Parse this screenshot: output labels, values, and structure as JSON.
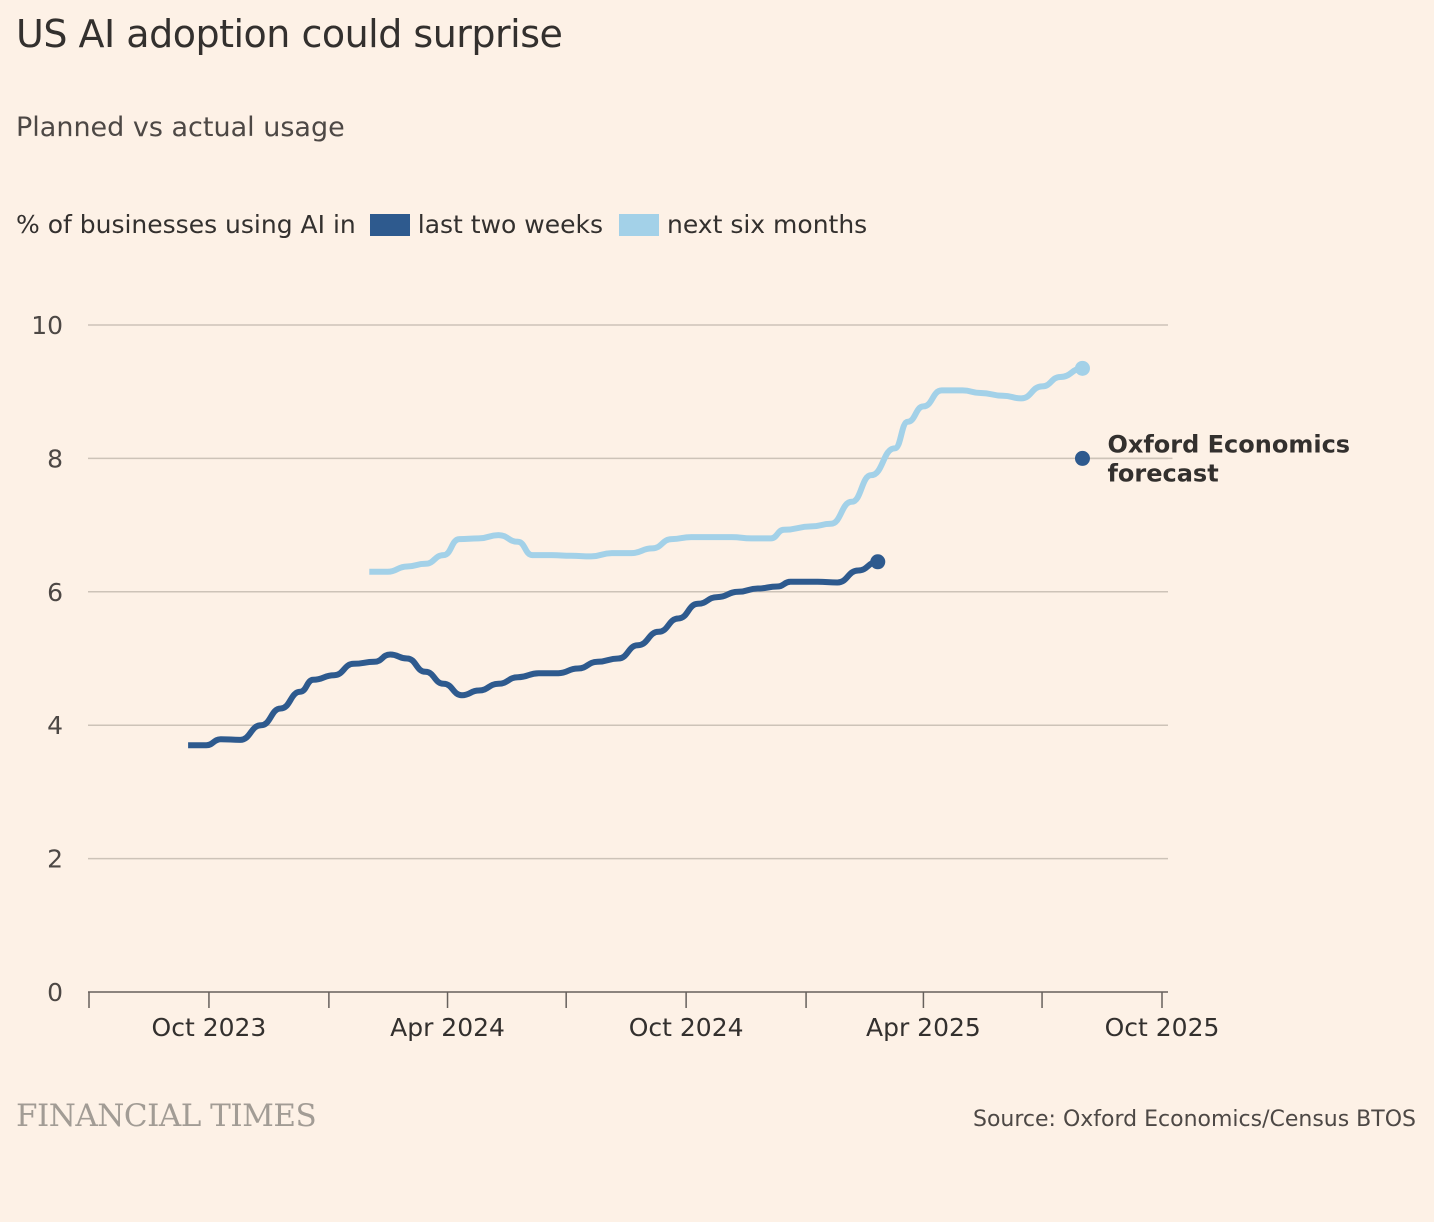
{
  "header": {
    "title": "US AI adoption could surprise",
    "subtitle": "Planned vs actual usage"
  },
  "footer": {
    "brand": "FINANCIAL TIMES",
    "source": "Source: Oxford Economics/Census BTOS"
  },
  "colors": {
    "background": "#fdf1e6",
    "last_two_weeks": "#2e5a8e",
    "next_six_months": "#a3d1e8",
    "gridline": "#cdc3b8",
    "axis": "#66605c",
    "text": "#33302e"
  },
  "chart_data": {
    "type": "line",
    "title": "US AI adoption could surprise",
    "subtitle": "Planned vs actual usage",
    "ylabel": "% of businesses using AI in",
    "ylim": [
      0,
      10
    ],
    "yticks": [
      0,
      2,
      4,
      6,
      8,
      10
    ],
    "xlim": [
      "2023-07-01",
      "2025-10-01"
    ],
    "xticks": [
      {
        "date": "2023-10-01",
        "label": "Oct 2023"
      },
      {
        "date": "2024-04-01",
        "label": "Apr 2024"
      },
      {
        "date": "2024-10-01",
        "label": "Oct 2024"
      },
      {
        "date": "2025-04-01",
        "label": "Apr 2025"
      },
      {
        "date": "2025-10-01",
        "label": "Oct 2025"
      }
    ],
    "minor_xticks": [
      "2023-07-01",
      "2024-01-01",
      "2024-07-01",
      "2025-01-01",
      "2025-07-01"
    ],
    "grid": true,
    "legend_position": "top-left",
    "series": [
      {
        "name": "last two weeks",
        "end_marker": true,
        "points": [
          [
            "2023-09-15",
            3.7
          ],
          [
            "2023-09-29",
            3.7
          ],
          [
            "2023-10-10",
            3.79
          ],
          [
            "2023-10-25",
            3.78
          ],
          [
            "2023-11-10",
            4.0
          ],
          [
            "2023-11-25",
            4.25
          ],
          [
            "2023-12-10",
            4.5
          ],
          [
            "2023-12-20",
            4.68
          ],
          [
            "2024-01-05",
            4.75
          ],
          [
            "2024-01-20",
            4.92
          ],
          [
            "2024-02-05",
            4.95
          ],
          [
            "2024-02-17",
            5.06
          ],
          [
            "2024-03-01",
            5.0
          ],
          [
            "2024-03-15",
            4.8
          ],
          [
            "2024-03-29",
            4.62
          ],
          [
            "2024-04-12",
            4.45
          ],
          [
            "2024-04-25",
            4.52
          ],
          [
            "2024-05-10",
            4.62
          ],
          [
            "2024-05-25",
            4.72
          ],
          [
            "2024-06-10",
            4.78
          ],
          [
            "2024-06-25",
            4.78
          ],
          [
            "2024-07-10",
            4.85
          ],
          [
            "2024-07-25",
            4.95
          ],
          [
            "2024-08-10",
            5.0
          ],
          [
            "2024-08-25",
            5.2
          ],
          [
            "2024-09-10",
            5.4
          ],
          [
            "2024-09-25",
            5.6
          ],
          [
            "2024-10-10",
            5.82
          ],
          [
            "2024-10-25",
            5.92
          ],
          [
            "2024-11-10",
            6.0
          ],
          [
            "2024-11-25",
            6.05
          ],
          [
            "2024-12-10",
            6.08
          ],
          [
            "2024-12-20",
            6.15
          ],
          [
            "2025-01-10",
            6.15
          ],
          [
            "2025-01-25",
            6.14
          ],
          [
            "2025-02-10",
            6.32
          ],
          [
            "2025-02-25",
            6.45
          ]
        ]
      },
      {
        "name": "next six months",
        "end_marker": true,
        "points": [
          [
            "2024-02-01",
            6.3
          ],
          [
            "2024-02-15",
            6.3
          ],
          [
            "2024-03-01",
            6.38
          ],
          [
            "2024-03-15",
            6.42
          ],
          [
            "2024-03-29",
            6.55
          ],
          [
            "2024-04-10",
            6.79
          ],
          [
            "2024-04-25",
            6.8
          ],
          [
            "2024-05-10",
            6.85
          ],
          [
            "2024-05-25",
            6.75
          ],
          [
            "2024-06-05",
            6.55
          ],
          [
            "2024-06-20",
            6.55
          ],
          [
            "2024-07-05",
            6.54
          ],
          [
            "2024-07-20",
            6.53
          ],
          [
            "2024-08-05",
            6.58
          ],
          [
            "2024-08-20",
            6.58
          ],
          [
            "2024-09-05",
            6.65
          ],
          [
            "2024-09-20",
            6.79
          ],
          [
            "2024-10-05",
            6.82
          ],
          [
            "2024-10-20",
            6.82
          ],
          [
            "2024-11-05",
            6.82
          ],
          [
            "2024-11-20",
            6.8
          ],
          [
            "2024-12-05",
            6.8
          ],
          [
            "2024-12-15",
            6.93
          ],
          [
            "2025-01-05",
            6.98
          ],
          [
            "2025-01-20",
            7.02
          ],
          [
            "2025-02-05",
            7.35
          ],
          [
            "2025-02-20",
            7.75
          ],
          [
            "2025-03-10",
            8.15
          ],
          [
            "2025-03-20",
            8.55
          ],
          [
            "2025-04-01",
            8.78
          ],
          [
            "2025-04-15",
            9.02
          ],
          [
            "2025-05-01",
            9.02
          ],
          [
            "2025-05-15",
            8.98
          ],
          [
            "2025-06-01",
            8.94
          ],
          [
            "2025-06-15",
            8.9
          ],
          [
            "2025-07-01",
            9.08
          ],
          [
            "2025-07-15",
            9.22
          ],
          [
            "2025-08-01",
            9.35
          ]
        ]
      }
    ],
    "annotations": [
      {
        "label": "Oxford Economics forecast",
        "lines": [
          "Oxford Economics",
          "forecast"
        ],
        "x": "2025-08-01",
        "y": 8.0
      }
    ]
  }
}
